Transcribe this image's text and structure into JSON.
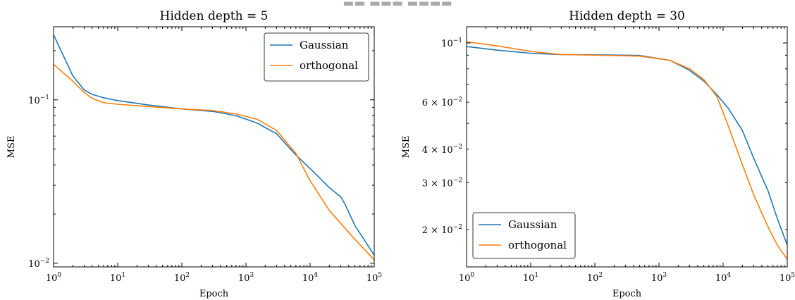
{
  "chart_data": [
    {
      "type": "line",
      "title": "Hidden depth = 5",
      "xlabel": "Epoch",
      "ylabel": "MSE",
      "xscale": "log",
      "yscale": "log",
      "xlim": [
        1,
        100000
      ],
      "ylim": [
        0.0095,
        0.28
      ],
      "xticks": [
        {
          "base": "10",
          "exp": "0"
        },
        {
          "base": "10",
          "exp": "1"
        },
        {
          "base": "10",
          "exp": "2"
        },
        {
          "base": "10",
          "exp": "3"
        },
        {
          "base": "10",
          "exp": "4"
        },
        {
          "base": "10",
          "exp": "5"
        }
      ],
      "yticks": [
        {
          "value": 0.1,
          "mant": "",
          "base": "10",
          "exp": "−1"
        },
        {
          "value": 0.01,
          "mant": "",
          "base": "10",
          "exp": "−2"
        }
      ],
      "legend": {
        "position": "top-right"
      },
      "series": [
        {
          "name": "Gaussian",
          "color": "#1f77b4",
          "x": [
            1,
            2,
            3,
            4,
            6,
            10,
            30,
            100,
            300,
            700,
            1500,
            3000,
            6000,
            10000,
            20000,
            30000,
            35000,
            50000,
            100000
          ],
          "y": [
            0.25,
            0.14,
            0.115,
            0.108,
            0.103,
            0.099,
            0.093,
            0.088,
            0.085,
            0.08,
            0.072,
            0.062,
            0.046,
            0.038,
            0.029,
            0.0255,
            0.023,
            0.017,
            0.0112
          ]
        },
        {
          "name": "orthogonal",
          "color": "#ff7f0e",
          "x": [
            1,
            2,
            3,
            4,
            6,
            10,
            30,
            100,
            300,
            700,
            1500,
            3000,
            6000,
            10000,
            20000,
            50000,
            100000
          ],
          "y": [
            0.165,
            0.13,
            0.111,
            0.102,
            0.096,
            0.094,
            0.091,
            0.088,
            0.086,
            0.082,
            0.076,
            0.065,
            0.047,
            0.032,
            0.021,
            0.014,
            0.0105
          ]
        }
      ]
    },
    {
      "type": "line",
      "title": "Hidden depth = 30",
      "xlabel": "Epoch",
      "ylabel": "MSE",
      "xscale": "log",
      "yscale": "log",
      "xlim": [
        1,
        100000
      ],
      "ylim": [
        0.0145,
        0.115
      ],
      "xticks": [
        {
          "base": "10",
          "exp": "0"
        },
        {
          "base": "10",
          "exp": "1"
        },
        {
          "base": "10",
          "exp": "2"
        },
        {
          "base": "10",
          "exp": "3"
        },
        {
          "base": "10",
          "exp": "4"
        },
        {
          "base": "10",
          "exp": "5"
        }
      ],
      "yticks": [
        {
          "value": 0.1,
          "mant": "",
          "base": "10",
          "exp": "−1"
        },
        {
          "value": 0.06,
          "mant": "6 × ",
          "base": "10",
          "exp": "−2"
        },
        {
          "value": 0.04,
          "mant": "4 × ",
          "base": "10",
          "exp": "−2"
        },
        {
          "value": 0.03,
          "mant": "3 × ",
          "base": "10",
          "exp": "−2"
        },
        {
          "value": 0.02,
          "mant": "2 × ",
          "base": "10",
          "exp": "−2"
        }
      ],
      "legend": {
        "position": "bottom-left"
      },
      "series": [
        {
          "name": "Gaussian",
          "color": "#1f77b4",
          "x": [
            1,
            3,
            10,
            30,
            100,
            500,
            1500,
            3000,
            5000,
            8000,
            12000,
            20000,
            30000,
            50000,
            70000,
            100000
          ],
          "y": [
            0.097,
            0.094,
            0.0915,
            0.0905,
            0.0903,
            0.0898,
            0.086,
            0.079,
            0.072,
            0.064,
            0.057,
            0.047,
            0.037,
            0.028,
            0.022,
            0.0175
          ]
        },
        {
          "name": "orthogonal",
          "color": "#ff7f0e",
          "x": [
            1,
            3,
            10,
            30,
            100,
            500,
            1500,
            3000,
            5000,
            8000,
            12000,
            20000,
            30000,
            50000,
            70000,
            100000
          ],
          "y": [
            0.101,
            0.0975,
            0.093,
            0.0905,
            0.09,
            0.0893,
            0.086,
            0.08,
            0.073,
            0.063,
            0.049,
            0.035,
            0.027,
            0.0205,
            0.0175,
            0.0155
          ]
        }
      ]
    }
  ]
}
